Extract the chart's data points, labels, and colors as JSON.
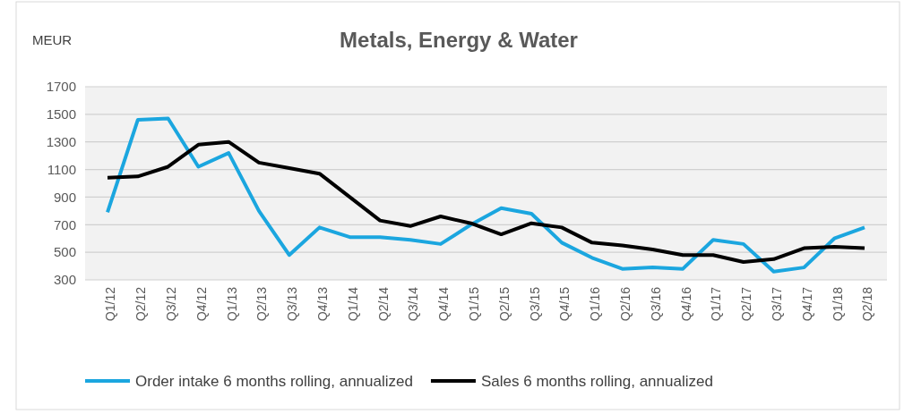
{
  "chart_data": {
    "type": "line",
    "title": "Metals, Energy & Water",
    "ylabel": "MEUR",
    "categories": [
      "Q1/12",
      "Q2/12",
      "Q3/12",
      "Q4/12",
      "Q1/13",
      "Q2/13",
      "Q3/13",
      "Q4/13",
      "Q1/14",
      "Q2/14",
      "Q3/14",
      "Q4/14",
      "Q1/15",
      "Q2/15",
      "Q3/15",
      "Q4/15",
      "Q1/16",
      "Q2/16",
      "Q3/16",
      "Q4/16",
      "Q1/17",
      "Q2/17",
      "Q3/17",
      "Q4/17",
      "Q1/18",
      "Q2/18"
    ],
    "series": [
      {
        "name": "Order intake 6 months rolling, annualized",
        "color": "#1ba6df",
        "values": [
          790,
          1460,
          1470,
          1120,
          1220,
          800,
          480,
          680,
          610,
          610,
          590,
          560,
          700,
          820,
          780,
          570,
          460,
          380,
          390,
          380,
          590,
          560,
          360,
          390,
          600,
          680
        ]
      },
      {
        "name": "Sales 6 months rolling, annualized",
        "color": "#000000",
        "values": [
          1040,
          1050,
          1120,
          1280,
          1300,
          1150,
          1110,
          1070,
          900,
          730,
          690,
          760,
          710,
          630,
          710,
          680,
          570,
          550,
          520,
          480,
          480,
          430,
          450,
          530,
          540,
          530
        ]
      }
    ],
    "ylim": [
      300,
      1700
    ],
    "yticks": [
      300,
      500,
      700,
      900,
      1100,
      1300,
      1500,
      1700
    ],
    "grid": "y",
    "legend": "bottom",
    "marker": "none",
    "line_style": "solid"
  }
}
